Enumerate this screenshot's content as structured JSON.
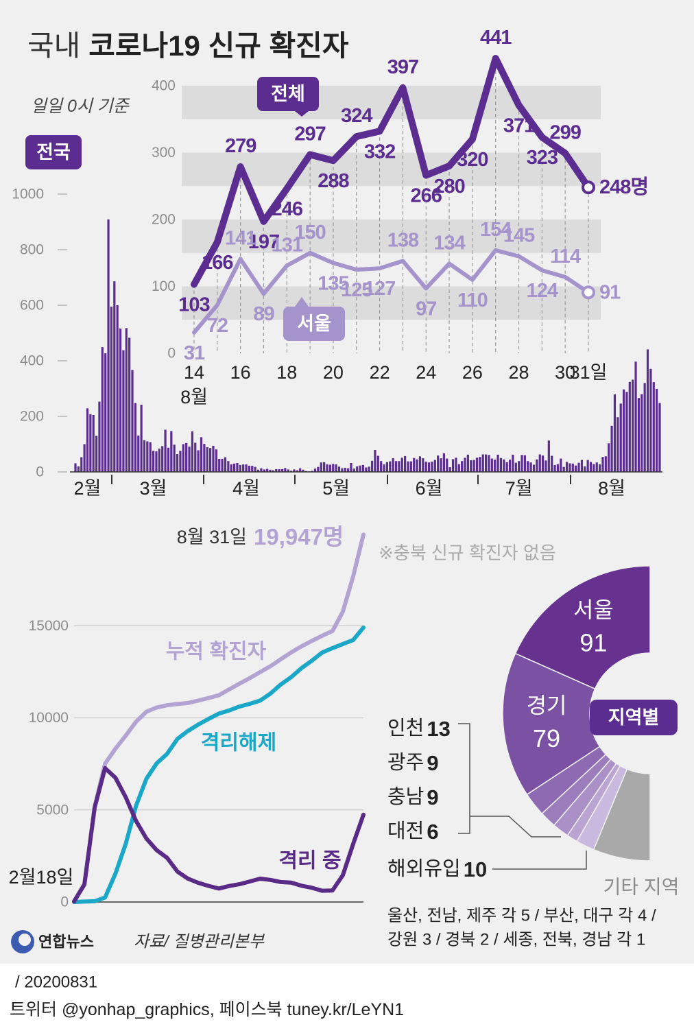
{
  "header": {
    "title_prefix": "국내",
    "title": "코로나19 신규 확진자",
    "subtitle": "일일 0시 기준",
    "badge": "전국"
  },
  "footer": {
    "logo": "연합뉴스",
    "source": "자료/ 질병관리본부",
    "date": "/ 20200831",
    "credit": "트위터 @yonhap_graphics, 페이스북 tuney.kr/LeYN1"
  },
  "chart_data": [
    {
      "type": "bar",
      "color": "#5c2d91",
      "ylim": [
        0,
        1000
      ],
      "yticks": [
        0,
        200,
        400,
        600,
        800,
        1000
      ],
      "categories": [
        null,
        null,
        null,
        null,
        "2월",
        null,
        null,
        null,
        null,
        null,
        null,
        null,
        null,
        null,
        null,
        null,
        null,
        null,
        null,
        null,
        null,
        null,
        null,
        null,
        null,
        null,
        "3월",
        null,
        null,
        null,
        null,
        null,
        null,
        null,
        null,
        null,
        null,
        null,
        null,
        null,
        null,
        null,
        null,
        null,
        null,
        null,
        null,
        null,
        null,
        null,
        null,
        null,
        null,
        null,
        null,
        null,
        null,
        "4월",
        null,
        null,
        null,
        null,
        null,
        null,
        null,
        null,
        null,
        null,
        null,
        null,
        null,
        null,
        null,
        null,
        null,
        null,
        null,
        null,
        null,
        null,
        null,
        null,
        null,
        null,
        null,
        null,
        null,
        "5월",
        null,
        null,
        null,
        null,
        null,
        null,
        null,
        null,
        null,
        null,
        null,
        null,
        null,
        null,
        null,
        null,
        null,
        null,
        null,
        null,
        null,
        null,
        null,
        null,
        null,
        null,
        null,
        null,
        null,
        null,
        "6월",
        null,
        null,
        null,
        null,
        null,
        null,
        null,
        null,
        null,
        null,
        null,
        null,
        null,
        null,
        null,
        null,
        null,
        null,
        null,
        null,
        null,
        null,
        null,
        null,
        null,
        null,
        null,
        null,
        null,
        "7월",
        null,
        null,
        null,
        null,
        null,
        null,
        null,
        null,
        null,
        null,
        null,
        null,
        null,
        null,
        null,
        null,
        null,
        null,
        null,
        null,
        null,
        null,
        null,
        null,
        null,
        null,
        null,
        null,
        null,
        null,
        "8월",
        null,
        null,
        null,
        null,
        null,
        null,
        null,
        null,
        null,
        null,
        null,
        null,
        null,
        null,
        null,
        null
      ],
      "values": [
        31,
        20,
        53,
        100,
        229,
        208,
        205,
        130,
        253,
        449,
        427,
        909,
        595,
        686,
        600,
        516,
        438,
        518,
        483,
        367,
        248,
        131,
        242,
        114,
        110,
        107,
        76,
        74,
        84,
        93,
        152,
        87,
        147,
        98,
        64,
        76,
        100,
        104,
        91,
        146,
        105,
        78,
        125,
        101,
        89,
        86,
        94,
        81,
        47,
        47,
        53,
        39,
        27,
        30,
        32,
        25,
        27,
        27,
        22,
        22,
        18,
        8,
        13,
        9,
        11,
        8,
        6,
        10,
        10,
        10,
        14,
        9,
        4,
        9,
        6,
        13,
        8,
        3,
        2,
        4,
        12,
        18,
        34,
        35,
        27,
        26,
        29,
        27,
        19,
        13,
        15,
        13,
        32,
        12,
        20,
        23,
        25,
        16,
        19,
        40,
        79,
        58,
        39,
        27,
        35,
        38,
        49,
        39,
        39,
        51,
        57,
        38,
        38,
        50,
        45,
        56,
        49,
        37,
        34,
        37,
        43,
        59,
        49,
        67,
        48,
        17,
        46,
        51,
        28,
        39,
        51,
        62,
        42,
        43,
        51,
        54,
        63,
        63,
        61,
        48,
        44,
        62,
        50,
        45,
        35,
        44,
        62,
        33,
        39,
        61,
        60,
        39,
        34,
        26,
        45,
        63,
        59,
        41,
        113,
        58,
        25,
        28,
        48,
        18,
        36,
        31,
        30,
        23,
        33,
        43,
        20,
        43,
        36,
        28,
        34,
        27,
        54,
        56,
        103,
        166,
        279,
        197,
        246,
        297,
        288,
        324,
        332,
        397,
        266,
        280,
        320,
        441,
        371,
        323,
        299,
        248
      ]
    },
    {
      "type": "line",
      "grid": "bands",
      "data_labels": true,
      "x": [
        14,
        15,
        16,
        17,
        18,
        19,
        20,
        21,
        22,
        23,
        24,
        25,
        26,
        27,
        28,
        29,
        30,
        31
      ],
      "xlim": [
        14,
        31
      ],
      "xticks": [
        14,
        16,
        18,
        20,
        22,
        24,
        26,
        28,
        30,
        {
          "value": 31,
          "label": "31일"
        }
      ],
      "x_sublabel": "8월",
      "ylim": [
        0,
        400
      ],
      "yticks": [
        0,
        100,
        200,
        300,
        400
      ],
      "series": [
        {
          "name": "전체",
          "color": "#5c2d91",
          "values": [
            103,
            166,
            279,
            197,
            246,
            297,
            288,
            324,
            332,
            397,
            266,
            280,
            320,
            441,
            371,
            323,
            299,
            248
          ],
          "value_labels": [
            "103",
            "166",
            "279",
            "197",
            "246",
            "297",
            "288",
            "324",
            "332",
            "397",
            "266",
            "280",
            "320",
            "441",
            "371",
            "323",
            "299",
            "248명"
          ]
        },
        {
          "name": "서울",
          "color": "#a593cc",
          "values": [
            31,
            72,
            141,
            89,
            131,
            150,
            135,
            125,
            127,
            138,
            97,
            134,
            110,
            154,
            145,
            124,
            114,
            91
          ]
        }
      ]
    },
    {
      "type": "line",
      "grid": true,
      "annotation": "8월 31일",
      "categories": [
        "2월18일",
        null,
        null,
        null,
        null,
        null,
        null,
        null,
        null,
        null,
        null,
        null,
        null,
        null,
        null,
        null,
        null,
        null,
        null,
        null,
        null,
        null,
        null,
        null,
        null,
        null,
        null,
        null,
        null
      ],
      "ylim": [
        0,
        20000
      ],
      "yticks": [
        0,
        5000,
        10000,
        15000
      ],
      "series": [
        {
          "name": "누적 확진자",
          "color": "#b3a3d3",
          "values": [
            31,
            977,
            5186,
            7513,
            8320,
            9037,
            9786,
            10331,
            10564,
            10683,
            10752,
            10806,
            10936,
            11078,
            11225,
            11541,
            11852,
            12155,
            12484,
            12800,
            13181,
            13551,
            13879,
            14175,
            14456,
            14714,
            15761,
            17665,
            19947
          ],
          "value_labels": [
            null,
            null,
            null,
            null,
            null,
            null,
            null,
            null,
            null,
            null,
            null,
            null,
            null,
            null,
            null,
            null,
            null,
            null,
            null,
            null,
            null,
            null,
            null,
            null,
            null,
            null,
            null,
            null,
            "19,947명"
          ]
        },
        {
          "name": "격리해제",
          "color": "#1ba8c8",
          "values": [
            0,
            22,
            41,
            247,
            1540,
            3166,
            5228,
            6694,
            7534,
            8042,
            8854,
            9283,
            9632,
            9938,
            10226,
            10398,
            10611,
            10760,
            10936,
            11317,
            11811,
            12204,
            12698,
            13098,
            13543,
            13785,
            14006,
            14219,
            14902
          ]
        },
        {
          "name": "격리 중",
          "color": "#5a2a87",
          "values": [
            31,
            955,
            5145,
            7266,
            6747,
            5684,
            4398,
            3445,
            2808,
            2397,
            1654,
            1269,
            1041,
            877,
            729,
            867,
            963,
            1115,
            1266,
            1201,
            1084,
            1054,
            883,
            776,
            612,
            624,
            1452,
            3141,
            4740
          ]
        }
      ]
    },
    {
      "type": "pie",
      "title": "지역별",
      "note": "※충북 신규 확진자 없음",
      "categories": [
        "서울",
        "경기",
        "인천",
        "광주",
        "충남",
        "대전",
        "해외유입",
        "기타 지역"
      ],
      "values": [
        91,
        79,
        13,
        9,
        9,
        6,
        10,
        31
      ],
      "colors": [
        "#66318f",
        "#7b52a3",
        "#8d6ab1",
        "#9b7dbc",
        "#aa90c7",
        "#b9a4d2",
        "#c9b9de",
        "#a9a9a9"
      ],
      "detail_lines": [
        "울산, 전남, 제주 각 5 / 부산, 대구 각 4 /",
        "강원 3 / 경북 2 / 세종, 전북, 경남 각 1"
      ]
    }
  ]
}
